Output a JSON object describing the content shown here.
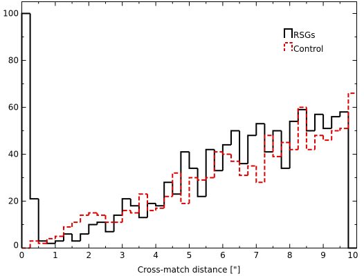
{
  "chart_data": {
    "type": "step-histogram",
    "xlabel": "Cross-match distance [\"]",
    "ylabel": "",
    "xlim": [
      0,
      10
    ],
    "ylim": [
      0,
      105
    ],
    "x_ticks": [
      0,
      1,
      2,
      3,
      4,
      5,
      6,
      7,
      8,
      9,
      10
    ],
    "y_ticks": [
      0,
      20,
      40,
      60,
      80,
      100
    ],
    "grid": false,
    "legend_position": "top-right",
    "bin_width": 0.25,
    "series": [
      {
        "name": "RSGs",
        "color": "#000000",
        "style": "solid",
        "values": [
          100,
          21,
          3,
          2,
          3,
          6,
          3,
          6,
          10,
          11,
          7,
          14,
          21,
          18,
          13,
          19,
          18,
          28,
          23,
          41,
          34,
          22,
          42,
          33,
          44,
          50,
          36,
          48,
          53,
          41,
          50,
          34,
          54,
          59,
          50,
          57,
          51,
          56,
          58,
          0
        ]
      },
      {
        "name": "Control",
        "color": "#dd0000",
        "style": "dashed",
        "values": [
          0,
          3,
          2,
          4,
          5,
          9,
          11,
          14,
          15,
          14,
          11,
          11,
          16,
          15,
          23,
          16,
          17,
          22,
          32,
          19,
          30,
          29,
          30,
          41,
          40,
          37,
          31,
          35,
          28,
          48,
          39,
          45,
          42,
          60,
          42,
          48,
          46,
          50,
          51,
          66
        ]
      }
    ]
  }
}
